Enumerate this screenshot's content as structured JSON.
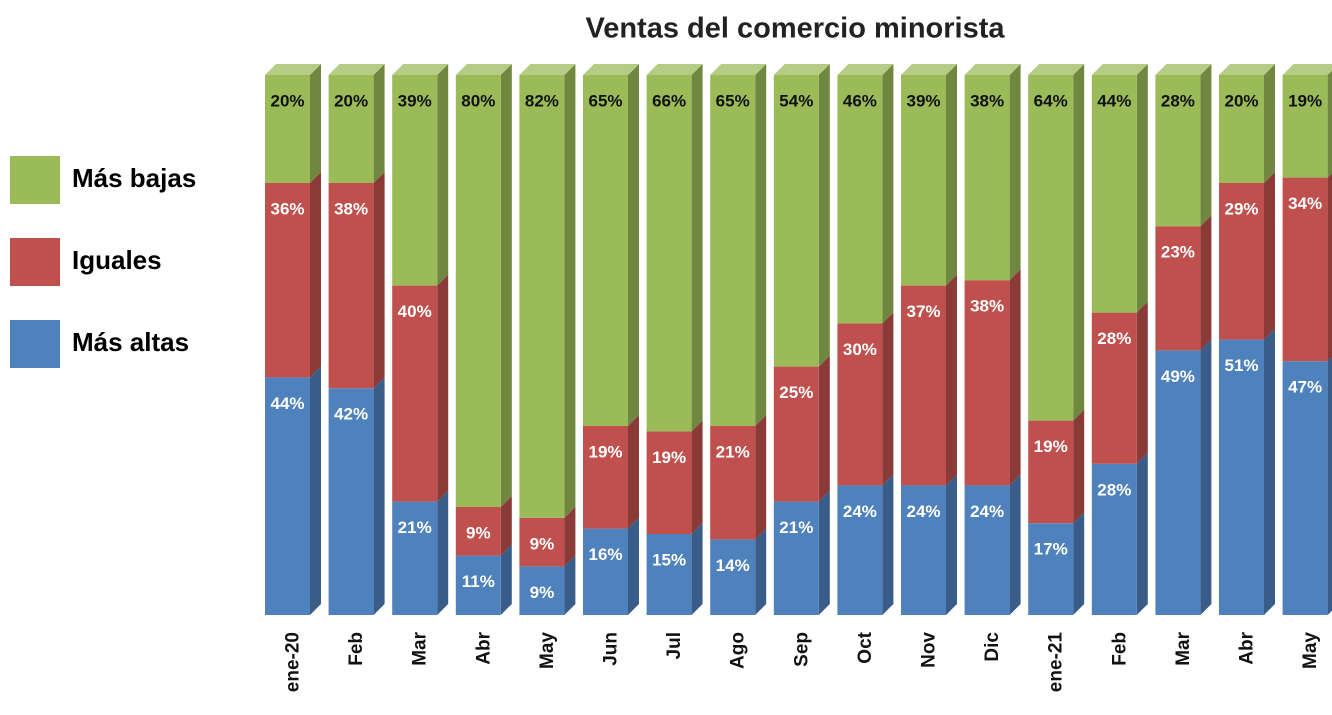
{
  "chart_data": {
    "type": "stacked_bar_3d",
    "title": "Ventas del comercio minorista",
    "categories": [
      "ene-20",
      "Feb",
      "Mar",
      "Abr",
      "May",
      "Jun",
      "Jul",
      "Ago",
      "Sep",
      "Oct",
      "Nov",
      "Dic",
      "ene-21",
      "Feb",
      "Mar",
      "Abr",
      "May"
    ],
    "series": [
      {
        "name": "Más altas",
        "color": "#4f81bd",
        "values": [
          44,
          42,
          21,
          11,
          9,
          16,
          15,
          14,
          21,
          24,
          24,
          24,
          17,
          28,
          49,
          51,
          47
        ],
        "value_labels": [
          "44%",
          "42%",
          "21%",
          "11%",
          "9%",
          "16%",
          "15%",
          "14%",
          "21%",
          "24%",
          "24%",
          "24%",
          "17%",
          "28%",
          "49%",
          "51%",
          "47%"
        ]
      },
      {
        "name": "Iguales",
        "color": "#c0504d",
        "values": [
          36,
          38,
          40,
          9,
          9,
          19,
          19,
          21,
          25,
          30,
          37,
          38,
          19,
          28,
          23,
          29,
          34
        ],
        "value_labels": [
          "36%",
          "38%",
          "40%",
          "9%",
          "9%",
          "19%",
          "19%",
          "21%",
          "25%",
          "30%",
          "37%",
          "38%",
          "19%",
          "28%",
          "23%",
          "29%",
          "34%"
        ]
      },
      {
        "name": "Más bajas",
        "color": "#9bbb59",
        "values": [
          20,
          20,
          39,
          80,
          82,
          65,
          66,
          65,
          54,
          46,
          39,
          38,
          64,
          44,
          28,
          20,
          19
        ],
        "value_labels": [
          "20%",
          "20%",
          "39%",
          "80%",
          "82%",
          "65%",
          "66%",
          "65%",
          "54%",
          "46%",
          "39%",
          "38%",
          "64%",
          "44%",
          "28%",
          "20%",
          "19%"
        ]
      }
    ],
    "legend": "left"
  }
}
